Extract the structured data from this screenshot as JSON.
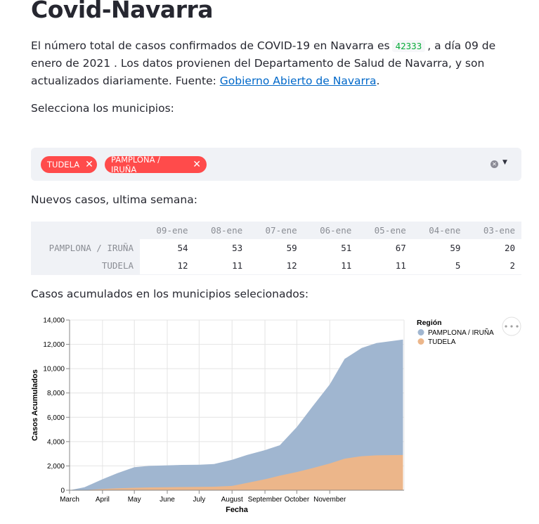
{
  "page": {
    "title": "Covid-Navarra",
    "intro_part1": "El número total de casos confirmados de COVID-19 en Navarra es",
    "total_cases": "42333",
    "intro_part2": ", a día 09 de enero de 2021 . Los datos provienen del Departamento de Salud de Navarra, y son actualizados diariamente. Fuente:",
    "source_link": "Gobierno Abierto de Navarra",
    "intro_end": "."
  },
  "selector": {
    "label": "Selecciona los municipios:",
    "tags": [
      "TUDELA",
      "PAMPLONA / IRUÑA"
    ],
    "remove_icon": "close-icon",
    "clear_icon": "clear-all-icon",
    "dropdown_icon": "caret-down-icon",
    "tag_color": "#ff4b4b"
  },
  "new_cases": {
    "label": "Nuevos casos, ultima semana:",
    "columns": [
      "09-ene",
      "08-ene",
      "07-ene",
      "06-ene",
      "05-ene",
      "04-ene",
      "03-ene"
    ],
    "rows": [
      {
        "name": "PAMPLONA / IRUÑA",
        "values": [
          "54",
          "53",
          "59",
          "51",
          "67",
          "59",
          "20"
        ]
      },
      {
        "name": "TUDELA",
        "values": [
          "12",
          "11",
          "12",
          "11",
          "11",
          "5",
          "2"
        ]
      }
    ]
  },
  "accumulated": {
    "label": "Casos acumulados en los municipios selecionados:",
    "menu_icon": "more-horizontal-icon"
  },
  "chart_data": {
    "type": "area",
    "title": "",
    "xlabel": "Fecha",
    "ylabel": "Casos Acumulados",
    "x_ticks": [
      "March",
      "April",
      "May",
      "June",
      "July",
      "August",
      "September",
      "October",
      "November"
    ],
    "y_ticks": [
      "0",
      "2,000",
      "4,000",
      "6,000",
      "8,000",
      "10,000",
      "12,000",
      "14,000"
    ],
    "ylim": [
      0,
      14000
    ],
    "grid": true,
    "legend_title": "Región",
    "legend_position": "top-right",
    "x": [
      "2020-03-01",
      "2020-03-15",
      "2020-04-01",
      "2020-04-15",
      "2020-05-01",
      "2020-05-15",
      "2020-06-01",
      "2020-06-15",
      "2020-07-01",
      "2020-07-15",
      "2020-08-01",
      "2020-08-15",
      "2020-09-01",
      "2020-09-15",
      "2020-10-01",
      "2020-10-15",
      "2020-11-01",
      "2020-11-15",
      "2020-12-01",
      "2020-12-15",
      "2021-01-09"
    ],
    "series": [
      {
        "name": "PAMPLONA / IRUÑA",
        "color": "#a0b6d0",
        "values": [
          0,
          250,
          900,
          1400,
          1900,
          2000,
          2050,
          2080,
          2100,
          2150,
          2500,
          2900,
          3300,
          3700,
          5200,
          6800,
          8700,
          10800,
          11700,
          12100,
          12400
        ]
      },
      {
        "name": "TUDELA",
        "color": "#ecb68a",
        "values": [
          0,
          20,
          100,
          160,
          200,
          230,
          250,
          260,
          270,
          290,
          350,
          600,
          900,
          1200,
          1500,
          1800,
          2200,
          2600,
          2800,
          2870,
          2900
        ]
      }
    ]
  }
}
